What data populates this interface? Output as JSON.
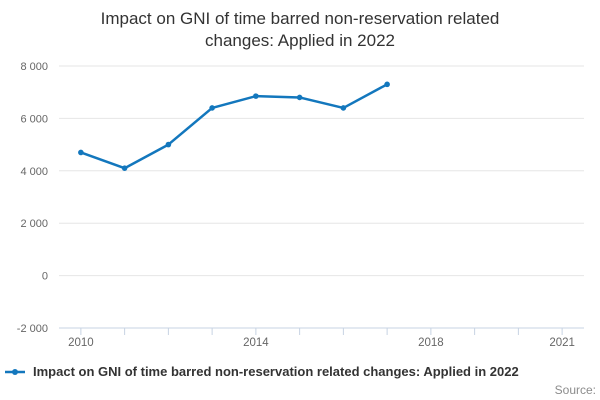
{
  "title": {
    "line1": "Impact on GNI of time barred non-reservation related",
    "line2": "changes: Applied in 2022"
  },
  "legend": {
    "label": "Impact on GNI of time barred non-reservation related changes: Applied in 2022"
  },
  "source_label": "Source:",
  "colors": {
    "series_line": "#1377bd",
    "gridline": "#e6e6e6",
    "axis_line": "#c7d3e3",
    "tick_mark": "#c7d3e3",
    "title_text": "#333333",
    "axis_label_text": "#666666",
    "legend_text": "#333333",
    "source_text": "#8c8c8c"
  },
  "chart_data": {
    "type": "line",
    "title": "Impact on GNI of time barred non-reservation related changes: Applied in 2022",
    "x": [
      2010,
      2011,
      2012,
      2013,
      2014,
      2015,
      2016,
      2017
    ],
    "series": [
      {
        "name": "Impact on GNI of time barred non-reservation related changes: Applied in 2022",
        "values": [
          4700,
          4100,
          5000,
          6400,
          6850,
          6800,
          6400,
          7300
        ]
      }
    ],
    "xlabel": "",
    "ylabel": "",
    "xlim": [
      2009.5,
      2021.5
    ],
    "ylim": [
      -2000,
      8000
    ],
    "xticks": [
      2010,
      2011,
      2012,
      2013,
      2014,
      2015,
      2016,
      2017,
      2018,
      2019,
      2020,
      2021
    ],
    "xtick_labels": {
      "2010": "2010",
      "2014": "2014",
      "2018": "2018",
      "2021": "2021"
    },
    "yticks": [
      -2000,
      0,
      2000,
      4000,
      6000,
      8000
    ],
    "ytick_labels": [
      "-2 000",
      "0",
      "2 000",
      "4 000",
      "6 000",
      "8 000"
    ],
    "grid": "horizontal",
    "legend_position": "bottom-left"
  }
}
